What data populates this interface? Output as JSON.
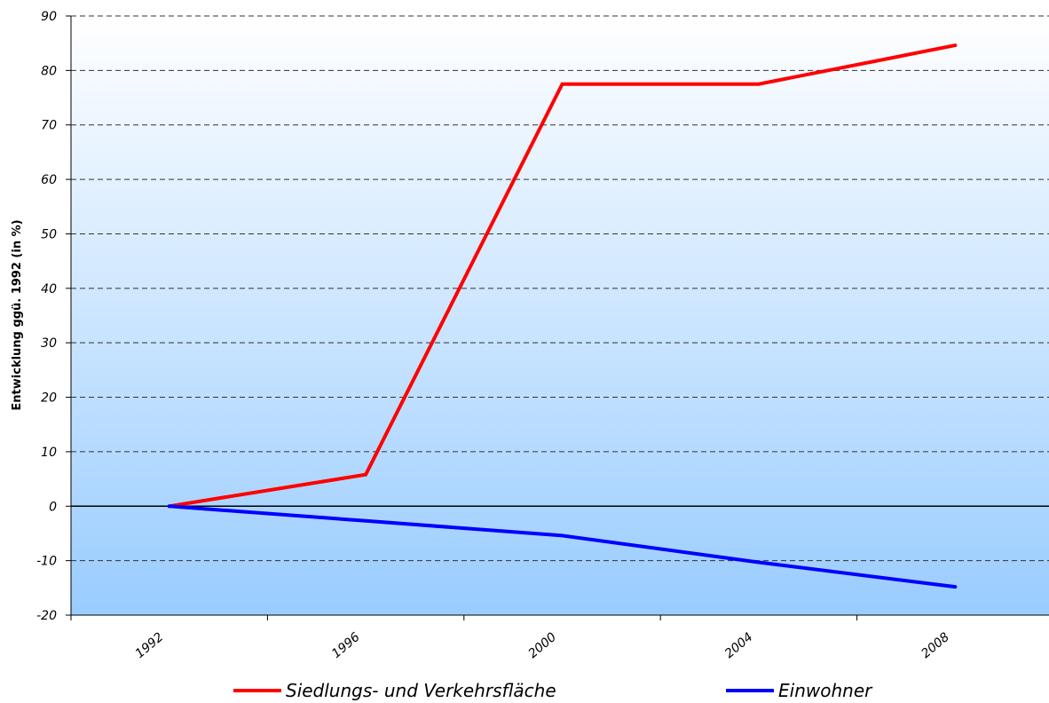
{
  "chart_data": {
    "type": "line",
    "title": "",
    "xlabel": "",
    "ylabel": "Entwicklung ggü. 1992 (in %)",
    "ylim": [
      -20,
      90
    ],
    "yticks": [
      "90",
      "80",
      "70",
      "60",
      "50",
      "40",
      "30",
      "20",
      "10",
      "0",
      "-10",
      "-20"
    ],
    "xlim": [
      1990,
      2010
    ],
    "xticks": [
      "1992",
      "1996",
      "2000",
      "2004",
      "2008"
    ],
    "grid": "horizontal dashed",
    "legend_position": "bottom",
    "series": [
      {
        "name": "Siedlungs- und Verkehrsfläche",
        "color": "#ff0000",
        "x": [
          1992,
          1996,
          2000,
          2004,
          2008
        ],
        "y": [
          0,
          5.8,
          77.5,
          77.5,
          84.6
        ]
      },
      {
        "name": "Einwohner",
        "color": "#0000ff",
        "x": [
          1992,
          1996,
          2000,
          2004,
          2008
        ],
        "y": [
          0,
          -2.7,
          -5.4,
          -10.3,
          -14.8
        ]
      }
    ]
  }
}
